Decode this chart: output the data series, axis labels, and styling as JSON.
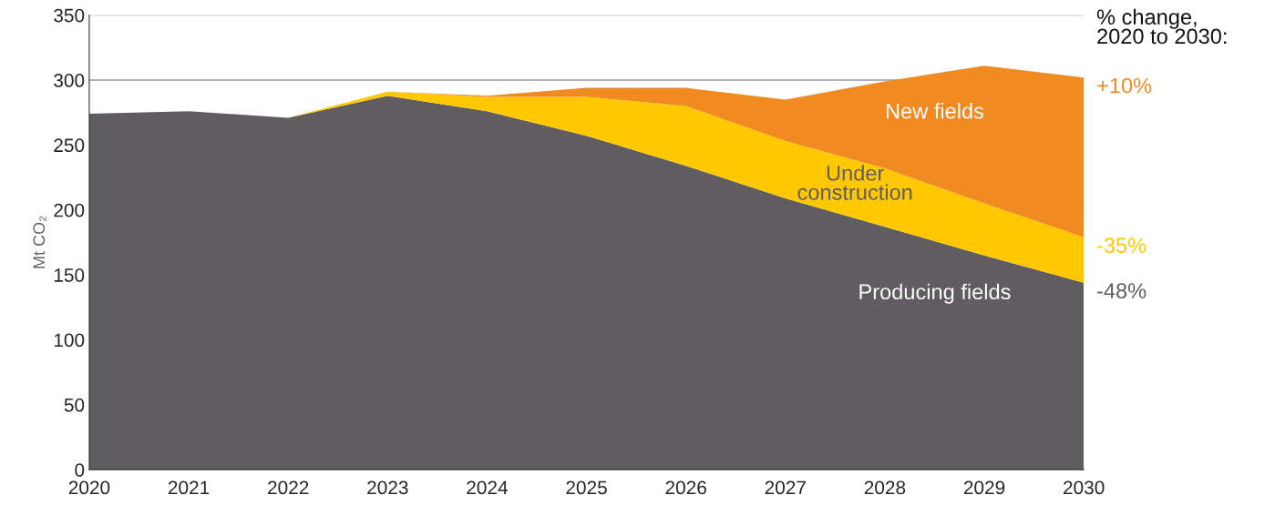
{
  "chart_data": {
    "type": "area",
    "stacked": true,
    "ylabel": "Mt CO₂",
    "x": [
      2020,
      2021,
      2022,
      2023,
      2024,
      2025,
      2026,
      2027,
      2028,
      2029,
      2030
    ],
    "series": [
      {
        "name": "Producing fields",
        "color": "#5f5d60",
        "values": [
          274,
          276,
          271,
          288,
          276,
          257,
          234,
          209,
          187,
          165,
          144
        ]
      },
      {
        "name": "Under\nconstruction",
        "color": "#ffc800",
        "values": [
          0,
          0,
          0,
          3,
          11,
          30,
          46,
          44,
          45,
          40,
          35
        ]
      },
      {
        "name": "New fields",
        "color": "#f18a21",
        "values": [
          0,
          0,
          0,
          0,
          1,
          7,
          14,
          32,
          67,
          106,
          123
        ]
      }
    ],
    "xlim": [
      2020,
      2030
    ],
    "xticks": [
      2020,
      2021,
      2022,
      2023,
      2024,
      2025,
      2026,
      2027,
      2028,
      2029,
      2030
    ],
    "ylim": [
      0,
      350
    ],
    "yticks": [
      0,
      50,
      100,
      150,
      200,
      250,
      300,
      350
    ],
    "grid": "y",
    "legend": false,
    "annotations": [
      "% change,\n2020 to 2030:",
      "+10%",
      "-35%",
      "-48%"
    ]
  }
}
